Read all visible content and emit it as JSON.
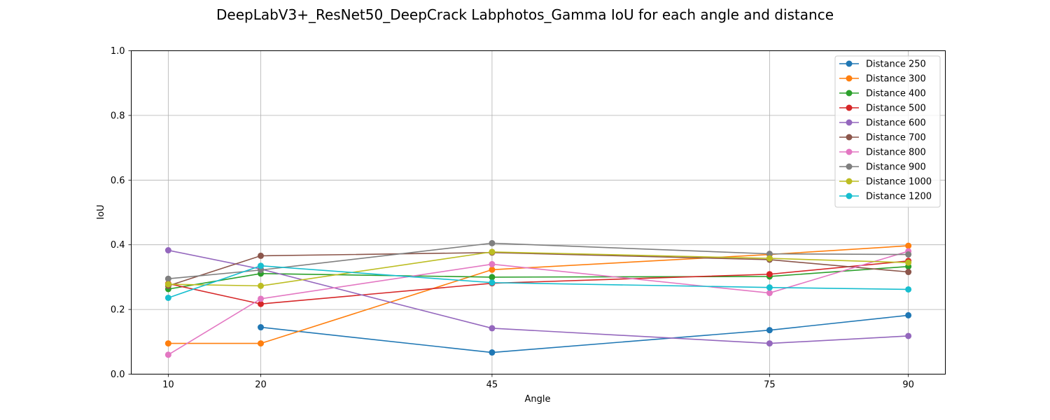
{
  "chart_data": {
    "type": "line",
    "title": "DeepLabV3+_ResNet50_DeepCrack Labphotos_Gamma IoU for each angle and distance",
    "xlabel": "Angle",
    "ylabel": "IoU",
    "x": [
      10,
      20,
      45,
      75,
      90
    ],
    "xlim": [
      6,
      94
    ],
    "ylim": [
      0,
      1.0
    ],
    "yticks": [
      "0.0",
      "0.2",
      "0.4",
      "0.6",
      "0.8",
      "1.0"
    ],
    "xticks": [
      "10",
      "20",
      "45",
      "75",
      "90"
    ],
    "grid": true,
    "legend_position": "top-right",
    "series": [
      {
        "name": "Distance 250",
        "color": "#1f77b4",
        "values": [
          null,
          0.145,
          0.067,
          0.136,
          0.182
        ]
      },
      {
        "name": "Distance 300",
        "color": "#ff7f0e",
        "values": [
          0.095,
          0.095,
          0.323,
          0.37,
          0.397
        ]
      },
      {
        "name": "Distance 400",
        "color": "#2ca02c",
        "values": [
          0.263,
          0.311,
          0.3,
          0.302,
          0.333
        ]
      },
      {
        "name": "Distance 500",
        "color": "#d62728",
        "values": [
          0.28,
          0.217,
          0.281,
          0.309,
          0.35
        ]
      },
      {
        "name": "Distance 600",
        "color": "#9467bd",
        "values": [
          0.383,
          0.325,
          0.142,
          0.095,
          0.118
        ]
      },
      {
        "name": "Distance 700",
        "color": "#8c564b",
        "values": [
          0.273,
          0.366,
          0.376,
          0.354,
          0.316
        ]
      },
      {
        "name": "Distance 800",
        "color": "#e377c2",
        "values": [
          0.06,
          0.233,
          0.34,
          0.251,
          0.38
        ]
      },
      {
        "name": "Distance 900",
        "color": "#7f7f7f",
        "values": [
          0.295,
          0.322,
          0.405,
          0.372,
          0.37
        ]
      },
      {
        "name": "Distance 1000",
        "color": "#bcbd22",
        "values": [
          0.278,
          0.273,
          0.378,
          0.358,
          0.345
        ]
      },
      {
        "name": "Distance 1200",
        "color": "#17becf",
        "values": [
          0.236,
          0.335,
          0.283,
          0.268,
          0.262
        ]
      }
    ]
  }
}
